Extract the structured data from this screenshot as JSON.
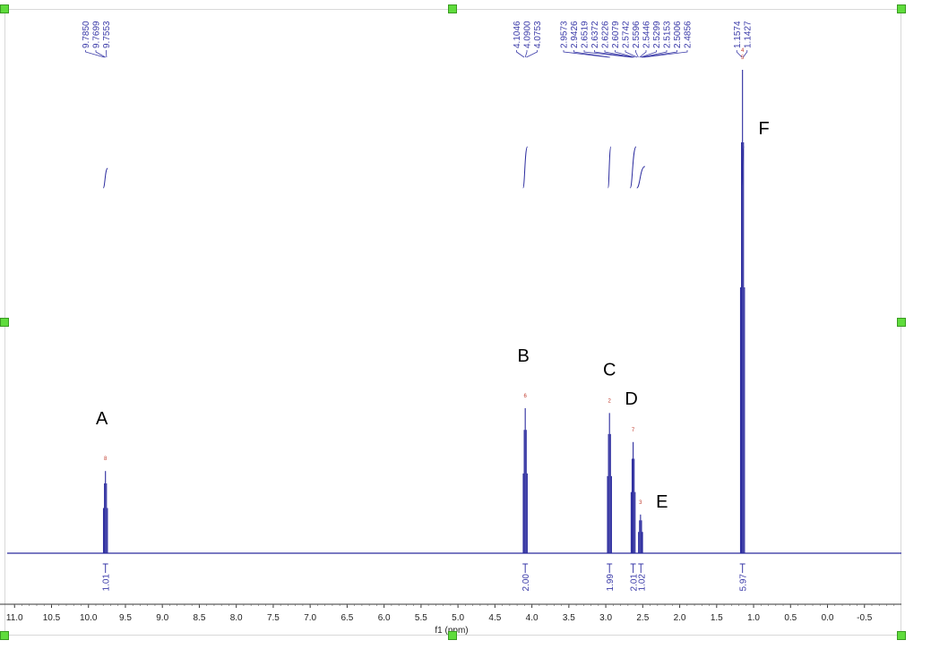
{
  "chart_data": {
    "type": "line",
    "title": "",
    "xlabel": "f1 (ppm)",
    "ylabel": "",
    "xlim": [
      11.1,
      -1.0
    ],
    "x_reversed": true,
    "x_ticks": [
      "11.0",
      "10.5",
      "10.0",
      "9.5",
      "9.0",
      "8.5",
      "8.0",
      "7.5",
      "7.0",
      "6.5",
      "6.0",
      "5.5",
      "5.0",
      "4.5",
      "4.0",
      "3.5",
      "3.0",
      "2.5",
      "2.0",
      "1.5",
      "1.0",
      "0.5",
      "0.0",
      "-0.5"
    ],
    "x_tick_values": [
      11.0,
      10.5,
      10.0,
      9.5,
      9.0,
      8.5,
      8.0,
      7.5,
      7.0,
      6.5,
      6.0,
      5.5,
      5.0,
      4.5,
      4.0,
      3.5,
      3.0,
      2.5,
      2.0,
      1.5,
      1.0,
      0.5,
      0.0,
      -0.5
    ],
    "line_color": "#2b2b9e",
    "label_color": "#3a3aa8",
    "peak_number_color": "#c0392b",
    "peak_groups": [
      {
        "labels": [
          "9.7850",
          "9.7699",
          "9.7553"
        ],
        "positions": [
          9.785,
          9.7699,
          9.7553
        ]
      },
      {
        "labels": [
          "4.1046",
          "4.0900",
          "4.0753"
        ],
        "positions": [
          4.1046,
          4.09,
          4.0753
        ]
      },
      {
        "labels": [
          "2.9573",
          "2.9426",
          "2.6519",
          "2.6372",
          "2.6226",
          "2.6079",
          "2.5742",
          "2.5596",
          "2.5446",
          "2.5299",
          "2.5153",
          "2.5006",
          "2.4856"
        ],
        "positions": [
          2.9573,
          2.9426,
          2.6519,
          2.6372,
          2.6226,
          2.6079,
          2.5742,
          2.5596,
          2.5446,
          2.5299,
          2.5153,
          2.5006,
          2.4856
        ]
      },
      {
        "labels": [
          "1.1574",
          "1.1427"
        ],
        "positions": [
          1.1574,
          1.1427
        ]
      }
    ],
    "peaks": [
      {
        "letter": "A",
        "number": "8",
        "shift": 9.77,
        "height": 0.17
      },
      {
        "letter": "B",
        "number": "6",
        "shift": 4.09,
        "height": 0.3
      },
      {
        "letter": "C",
        "number": "2",
        "shift": 2.95,
        "height": 0.29
      },
      {
        "letter": "D",
        "number": "7",
        "shift": 2.63,
        "height": 0.23
      },
      {
        "letter": "E",
        "number": "3",
        "shift": 2.53,
        "height": 0.08
      },
      {
        "letter": "F",
        "number": "4\n5",
        "shift": 1.15,
        "height": 1.0
      }
    ],
    "integrals": [
      {
        "label": "1.01",
        "from": 9.8,
        "to": 9.74
      },
      {
        "label": "2.00",
        "from": 4.12,
        "to": 4.06
      },
      {
        "label": "1.99",
        "from": 2.97,
        "to": 2.93
      },
      {
        "label": "2.01",
        "from": 2.67,
        "to": 2.59
      },
      {
        "label": "1.02",
        "from": 2.58,
        "to": 2.47
      },
      {
        "label": "5.97",
        "from": 1.17,
        "to": 1.13
      }
    ]
  }
}
